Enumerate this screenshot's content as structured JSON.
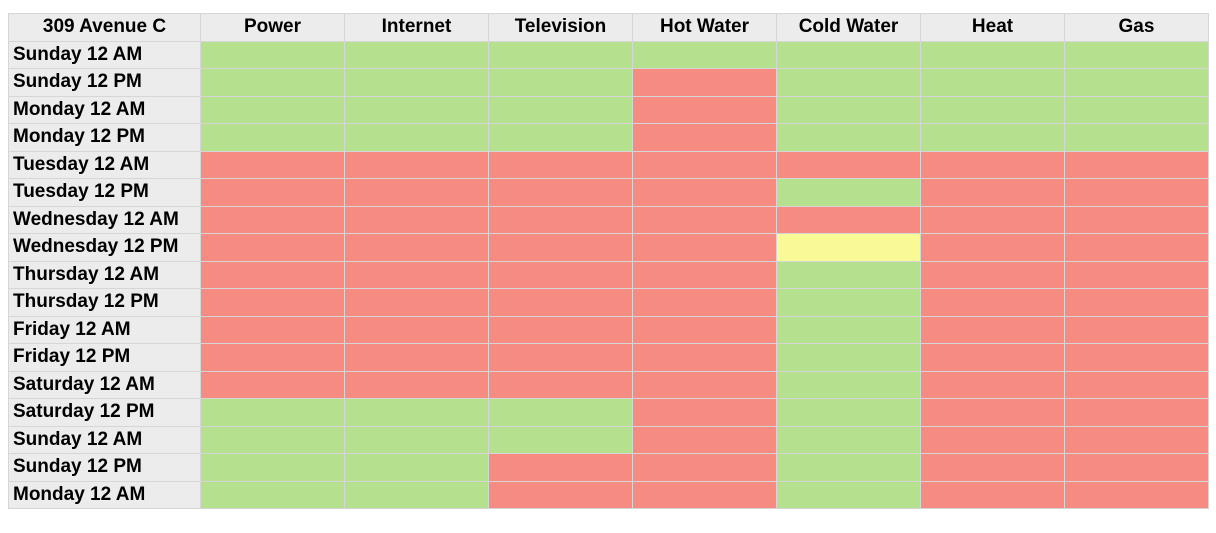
{
  "table": {
    "corner": "309 Avenue C",
    "columns": [
      "Power",
      "Internet",
      "Television",
      "Hot Water",
      "Cold Water",
      "Heat",
      "Gas"
    ],
    "status_colors": {
      "ok": "#b5e08e",
      "out": "#f68b81",
      "partial": "#f9f995"
    },
    "rows": [
      {
        "label": "Sunday 12 AM",
        "status": [
          "ok",
          "ok",
          "ok",
          "ok",
          "ok",
          "ok",
          "ok"
        ]
      },
      {
        "label": "Sunday 12 PM",
        "status": [
          "ok",
          "ok",
          "ok",
          "out",
          "ok",
          "ok",
          "ok"
        ]
      },
      {
        "label": "Monday 12 AM",
        "status": [
          "ok",
          "ok",
          "ok",
          "out",
          "ok",
          "ok",
          "ok"
        ]
      },
      {
        "label": "Monday 12 PM",
        "status": [
          "ok",
          "ok",
          "ok",
          "out",
          "ok",
          "ok",
          "ok"
        ]
      },
      {
        "label": "Tuesday 12 AM",
        "status": [
          "out",
          "out",
          "out",
          "out",
          "out",
          "out",
          "out"
        ]
      },
      {
        "label": "Tuesday 12 PM",
        "status": [
          "out",
          "out",
          "out",
          "out",
          "ok",
          "out",
          "out"
        ]
      },
      {
        "label": "Wednesday 12 AM",
        "status": [
          "out",
          "out",
          "out",
          "out",
          "out",
          "out",
          "out"
        ]
      },
      {
        "label": "Wednesday 12 PM",
        "status": [
          "out",
          "out",
          "out",
          "out",
          "partial",
          "out",
          "out"
        ]
      },
      {
        "label": "Thursday 12 AM",
        "status": [
          "out",
          "out",
          "out",
          "out",
          "ok",
          "out",
          "out"
        ]
      },
      {
        "label": "Thursday 12 PM",
        "status": [
          "out",
          "out",
          "out",
          "out",
          "ok",
          "out",
          "out"
        ]
      },
      {
        "label": "Friday 12 AM",
        "status": [
          "out",
          "out",
          "out",
          "out",
          "ok",
          "out",
          "out"
        ]
      },
      {
        "label": "Friday 12 PM",
        "status": [
          "out",
          "out",
          "out",
          "out",
          "ok",
          "out",
          "out"
        ]
      },
      {
        "label": "Saturday 12 AM",
        "status": [
          "out",
          "out",
          "out",
          "out",
          "ok",
          "out",
          "out"
        ]
      },
      {
        "label": "Saturday 12 PM",
        "status": [
          "ok",
          "ok",
          "ok",
          "out",
          "ok",
          "out",
          "out"
        ]
      },
      {
        "label": "Sunday 12 AM",
        "status": [
          "ok",
          "ok",
          "ok",
          "out",
          "ok",
          "out",
          "out"
        ]
      },
      {
        "label": "Sunday 12 PM",
        "status": [
          "ok",
          "ok",
          "out",
          "out",
          "ok",
          "out",
          "out"
        ]
      },
      {
        "label": "Monday 12 AM",
        "status": [
          "ok",
          "ok",
          "out",
          "out",
          "ok",
          "out",
          "out"
        ]
      }
    ]
  }
}
